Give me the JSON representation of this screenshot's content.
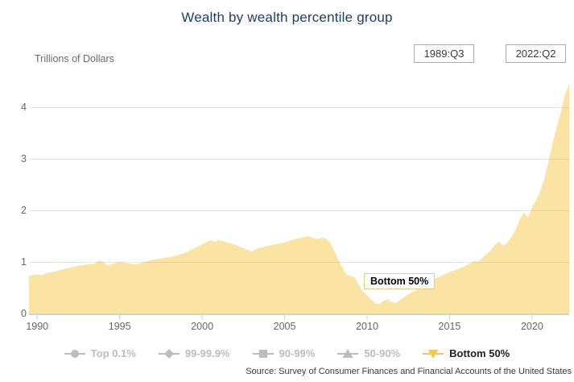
{
  "header": {
    "title": "Wealth by wealth percentile group",
    "period_start": "1989:Q3",
    "period_end": "2022:Q2"
  },
  "annotation": {
    "text": "Bottom 50%"
  },
  "legend": {
    "items": [
      {
        "label": "Top 0.1%",
        "marker": "circle-marker",
        "active": false
      },
      {
        "label": "99-99.9%",
        "marker": "diamond-marker",
        "active": false
      },
      {
        "label": "90-99%",
        "marker": "square-marker",
        "active": false
      },
      {
        "label": "50-90%",
        "marker": "triangle-up-marker",
        "active": false
      },
      {
        "label": "Bottom 50%",
        "marker": "triangle-down-marker",
        "active": true
      }
    ]
  },
  "source": "Source: Survey of Consumer Finances and Financial Accounts of the United States",
  "chart_data": {
    "type": "area",
    "title": "Wealth by wealth percentile group",
    "ylabel": "Trillions of Dollars",
    "xlabel": "",
    "x_range": [
      1989.5,
      2022.25
    ],
    "ylim": [
      0,
      4.55
    ],
    "yticks": [
      0,
      1,
      2,
      3,
      4
    ],
    "xticks": [
      1990,
      1995,
      2000,
      2005,
      2010,
      2015,
      2020
    ],
    "grid": true,
    "legend_position": "bottom",
    "colors": {
      "area_fill": "#fbe3a4",
      "active_legend": "#f3c75f",
      "inactive_legend": "#bdbdbd",
      "axis_line": "#c6d4df",
      "gridline": "#e6e6e6",
      "title_text": "#1d3c5e",
      "tick_text": "#666666"
    },
    "series": [
      {
        "name": "Bottom 50%",
        "color": "#fbe3a4",
        "points": [
          [
            1989.5,
            0.73
          ],
          [
            1989.75,
            0.75
          ],
          [
            1990,
            0.76
          ],
          [
            1990.25,
            0.74
          ],
          [
            1990.5,
            0.78
          ],
          [
            1991,
            0.81
          ],
          [
            1991.5,
            0.85
          ],
          [
            1992,
            0.89
          ],
          [
            1992.5,
            0.93
          ],
          [
            1993,
            0.95
          ],
          [
            1993.5,
            0.97
          ],
          [
            1993.75,
            1.03
          ],
          [
            1994,
            1.0
          ],
          [
            1994.25,
            0.93
          ],
          [
            1994.75,
            0.98
          ],
          [
            1995,
            1.0
          ],
          [
            1995.5,
            0.97
          ],
          [
            1996,
            0.95
          ],
          [
            1996.5,
            1.0
          ],
          [
            1997,
            1.04
          ],
          [
            1997.5,
            1.07
          ],
          [
            1998,
            1.09
          ],
          [
            1998.5,
            1.13
          ],
          [
            1999,
            1.18
          ],
          [
            1999.5,
            1.26
          ],
          [
            2000,
            1.34
          ],
          [
            2000.5,
            1.42
          ],
          [
            2000.75,
            1.39
          ],
          [
            2001,
            1.43
          ],
          [
            2001.5,
            1.38
          ],
          [
            2002,
            1.33
          ],
          [
            2002.5,
            1.27
          ],
          [
            2003,
            1.2
          ],
          [
            2003.25,
            1.25
          ],
          [
            2003.75,
            1.29
          ],
          [
            2004.25,
            1.33
          ],
          [
            2004.75,
            1.36
          ],
          [
            2005,
            1.38
          ],
          [
            2005.5,
            1.43
          ],
          [
            2006,
            1.47
          ],
          [
            2006.5,
            1.5
          ],
          [
            2006.75,
            1.46
          ],
          [
            2007,
            1.44
          ],
          [
            2007.25,
            1.47
          ],
          [
            2007.5,
            1.45
          ],
          [
            2007.75,
            1.38
          ],
          [
            2008,
            1.22
          ],
          [
            2008.25,
            1.04
          ],
          [
            2008.5,
            0.88
          ],
          [
            2008.75,
            0.76
          ],
          [
            2009,
            0.72
          ],
          [
            2009.25,
            0.7
          ],
          [
            2009.5,
            0.55
          ],
          [
            2009.75,
            0.42
          ],
          [
            2010,
            0.35
          ],
          [
            2010.25,
            0.27
          ],
          [
            2010.5,
            0.2
          ],
          [
            2010.75,
            0.18
          ],
          [
            2011,
            0.25
          ],
          [
            2011.25,
            0.28
          ],
          [
            2011.5,
            0.22
          ],
          [
            2011.75,
            0.2
          ],
          [
            2012,
            0.27
          ],
          [
            2012.5,
            0.37
          ],
          [
            2013,
            0.46
          ],
          [
            2013.5,
            0.56
          ],
          [
            2014,
            0.66
          ],
          [
            2014.5,
            0.73
          ],
          [
            2015,
            0.8
          ],
          [
            2015.5,
            0.86
          ],
          [
            2016,
            0.93
          ],
          [
            2016.25,
            0.97
          ],
          [
            2016.5,
            1.02
          ],
          [
            2016.75,
            1.0
          ],
          [
            2017,
            1.08
          ],
          [
            2017.5,
            1.22
          ],
          [
            2017.75,
            1.33
          ],
          [
            2018,
            1.39
          ],
          [
            2018.25,
            1.31
          ],
          [
            2018.5,
            1.37
          ],
          [
            2018.75,
            1.48
          ],
          [
            2019,
            1.62
          ],
          [
            2019.25,
            1.82
          ],
          [
            2019.5,
            1.96
          ],
          [
            2019.75,
            1.86
          ],
          [
            2020,
            2.06
          ],
          [
            2020.25,
            2.2
          ],
          [
            2020.5,
            2.38
          ],
          [
            2020.75,
            2.63
          ],
          [
            2021,
            2.96
          ],
          [
            2021.25,
            3.3
          ],
          [
            2021.5,
            3.62
          ],
          [
            2021.75,
            3.92
          ],
          [
            2022,
            4.25
          ],
          [
            2022.25,
            4.45
          ]
        ]
      }
    ],
    "inactive_series": [
      "Top 0.1%",
      "99-99.9%",
      "90-99%",
      "50-90%"
    ],
    "annotations": [
      {
        "text": "Bottom 50%",
        "target_series": "Bottom 50%"
      }
    ]
  }
}
